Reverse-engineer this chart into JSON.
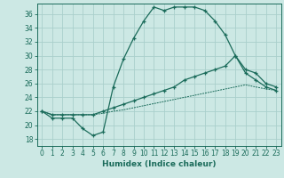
{
  "xlabel": "Humidex (Indice chaleur)",
  "background_color": "#cce8e4",
  "grid_color": "#aacfcc",
  "line_color": "#1a6b5a",
  "xlim": [
    -0.5,
    23.5
  ],
  "ylim": [
    17,
    37.5
  ],
  "yticks": [
    18,
    20,
    22,
    24,
    26,
    28,
    30,
    32,
    34,
    36
  ],
  "xticks": [
    0,
    1,
    2,
    3,
    4,
    5,
    6,
    7,
    8,
    9,
    10,
    11,
    12,
    13,
    14,
    15,
    16,
    17,
    18,
    19,
    20,
    21,
    22,
    23
  ],
  "series1_x": [
    0,
    1,
    2,
    3,
    4,
    5,
    6,
    7,
    8,
    9,
    10,
    11,
    12,
    13,
    14,
    15,
    16,
    17,
    18,
    19,
    20,
    21,
    22,
    23
  ],
  "series1_y": [
    22.0,
    21.0,
    21.0,
    21.0,
    19.5,
    18.5,
    19.0,
    25.5,
    29.5,
    32.5,
    35.0,
    37.0,
    36.5,
    37.0,
    37.0,
    37.0,
    36.5,
    35.0,
    33.0,
    30.0,
    27.5,
    26.5,
    25.5,
    25.0
  ],
  "series2_x": [
    0,
    1,
    2,
    3,
    4,
    5,
    6,
    7,
    8,
    9,
    10,
    11,
    12,
    13,
    14,
    15,
    16,
    17,
    18,
    19,
    20,
    21,
    22,
    23
  ],
  "series2_y": [
    22.0,
    21.5,
    21.5,
    21.5,
    21.5,
    21.5,
    22.0,
    22.5,
    23.0,
    23.5,
    24.0,
    24.5,
    25.0,
    25.5,
    26.5,
    27.0,
    27.5,
    28.0,
    28.5,
    30.0,
    28.0,
    27.5,
    26.0,
    25.5
  ],
  "series3_x": [
    0,
    1,
    2,
    3,
    4,
    5,
    6,
    7,
    8,
    9,
    10,
    11,
    12,
    13,
    14,
    15,
    16,
    17,
    18,
    19,
    20,
    21,
    22,
    23
  ],
  "series3_y": [
    22.0,
    21.5,
    21.5,
    21.5,
    21.5,
    21.5,
    21.7,
    22.0,
    22.2,
    22.5,
    22.8,
    23.1,
    23.4,
    23.7,
    24.0,
    24.3,
    24.6,
    24.9,
    25.2,
    25.5,
    25.8,
    25.5,
    25.2,
    25.0
  ]
}
